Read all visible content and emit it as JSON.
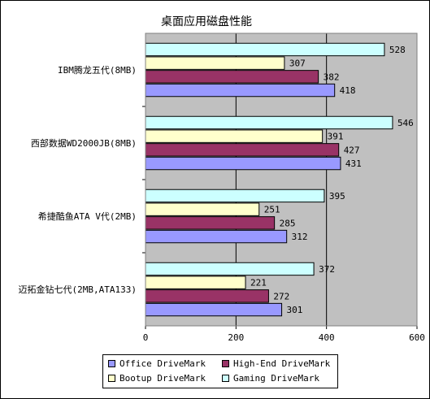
{
  "chart_data": {
    "type": "bar",
    "orientation": "horizontal",
    "title": "桌面应用磁盘性能",
    "categories": [
      "IBM腾龙五代(8MB)",
      "西部数据WD2000JB(8MB)",
      "希捷酷鱼ATA V代(2MB)",
      "迈拓金钻七代(2MB,ATA133)"
    ],
    "series": [
      {
        "name": "Office DriveMark",
        "color": "#9999ff",
        "values": [
          418,
          431,
          312,
          301
        ]
      },
      {
        "name": "High-End DriveMark",
        "color": "#993366",
        "values": [
          382,
          427,
          285,
          272
        ]
      },
      {
        "name": "Bootup DriveMark",
        "color": "#ffffcc",
        "values": [
          307,
          391,
          251,
          221
        ]
      },
      {
        "name": "Gaming DriveMark",
        "color": "#ccffff",
        "values": [
          528,
          546,
          395,
          372
        ]
      }
    ],
    "xlim": [
      0,
      600
    ],
    "xticks": [
      "0",
      "200",
      "400",
      "600"
    ],
    "grid": true,
    "legend_position": "bottom",
    "plot_background": "#c0c0c0"
  }
}
